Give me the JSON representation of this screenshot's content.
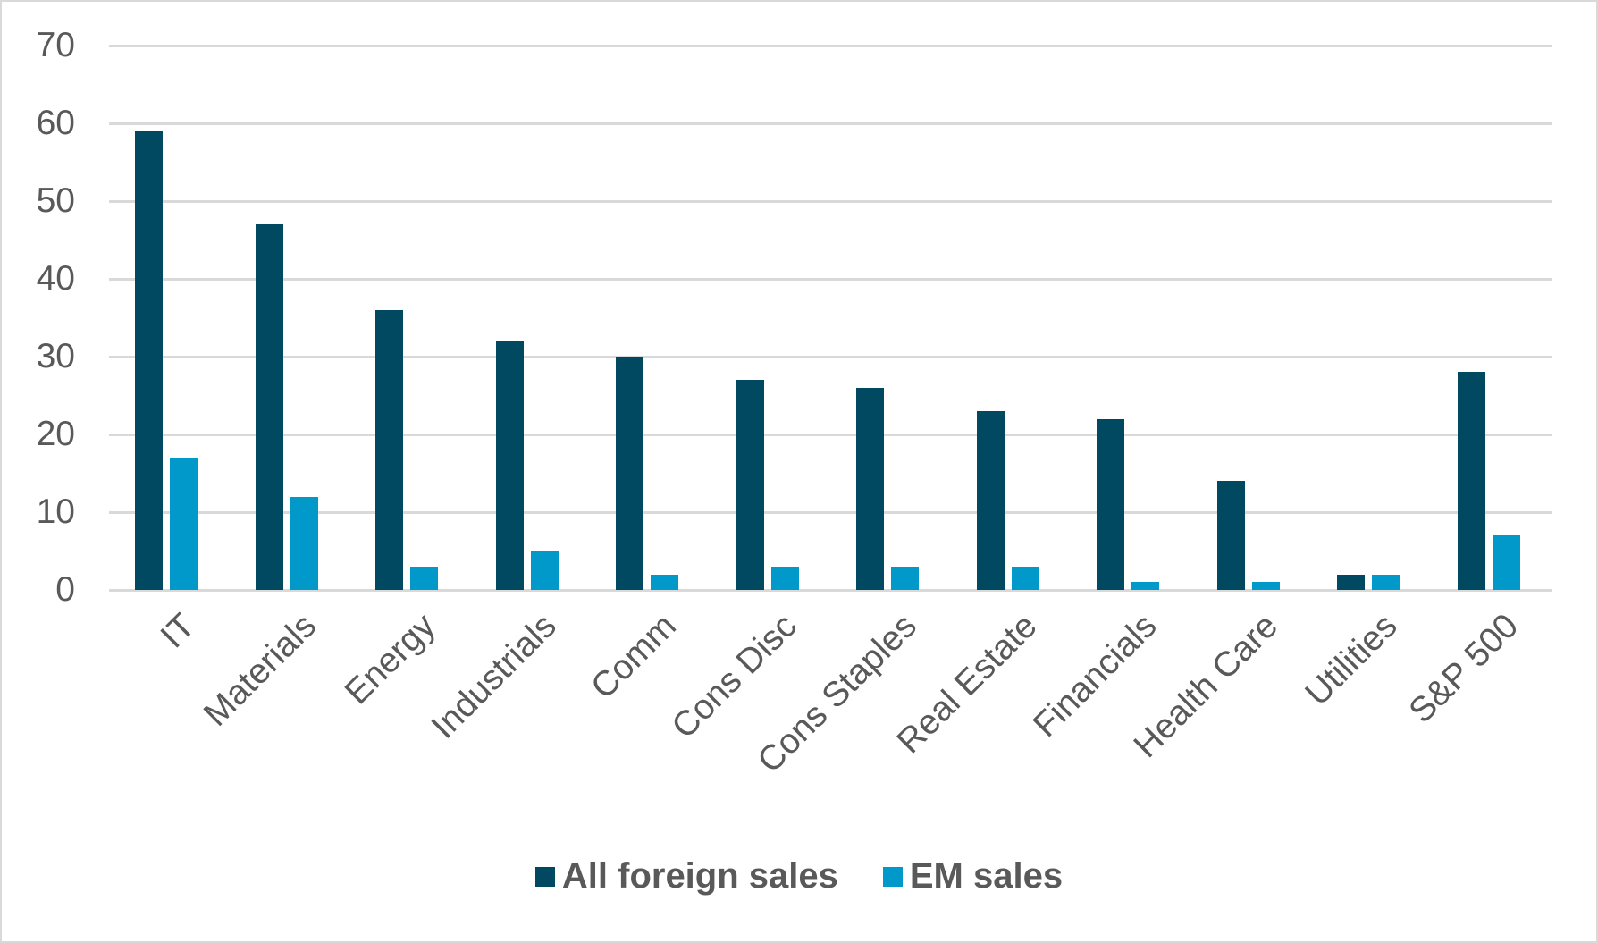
{
  "chart_data": {
    "type": "bar",
    "title": "",
    "xlabel": "",
    "ylabel": "",
    "ylim": [
      0,
      70
    ],
    "yticks": [
      0,
      10,
      20,
      30,
      40,
      50,
      60,
      70
    ],
    "grid": true,
    "legend_position": "bottom",
    "categories": [
      "IT",
      "Materials",
      "Energy",
      "Industrials",
      "Comm",
      "Cons Disc",
      "Cons Staples",
      "Real Estate",
      "Financials",
      "Health Care",
      "Utilities",
      "S&P 500"
    ],
    "series": [
      {
        "name": "All foreign sales",
        "color": "#004960",
        "values": [
          59,
          47,
          36,
          32,
          30,
          27,
          26,
          23,
          22,
          14,
          2,
          28
        ]
      },
      {
        "name": "EM sales",
        "color": "#0099c9",
        "values": [
          17,
          12,
          3,
          5,
          2,
          3,
          3,
          3,
          1,
          1,
          2,
          7
        ]
      }
    ]
  },
  "colors": {
    "grid": "#d9d9d9",
    "text": "#595959",
    "border": "#d9d9d9"
  }
}
